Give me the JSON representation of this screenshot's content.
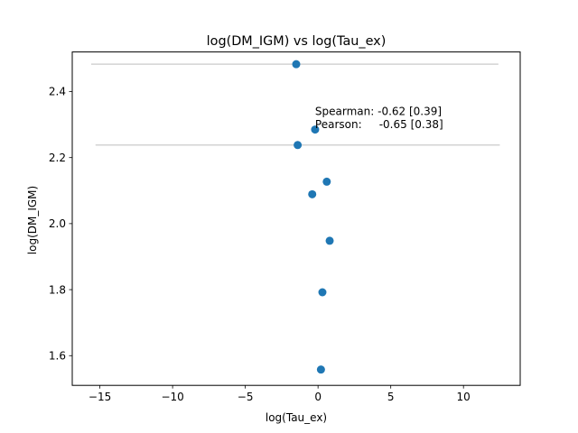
{
  "chart_data": {
    "type": "scatter",
    "title": "log(DM_IGM) vs log(Tau_ex)",
    "xlabel": "log(Tau_ex)",
    "ylabel": "log(DM_IGM)",
    "xlim": [
      -16.9,
      13.9
    ],
    "ylim": [
      1.51,
      2.52
    ],
    "xticks": [
      -15,
      -10,
      -5,
      0,
      5,
      10
    ],
    "xtick_labels": [
      "−15",
      "−10",
      "−5",
      "0",
      "5",
      "10"
    ],
    "yticks": [
      1.6,
      1.8,
      2.0,
      2.2,
      2.4
    ],
    "ytick_labels": [
      "1.6",
      "1.8",
      "2.0",
      "2.2",
      "2.4"
    ],
    "grid": false,
    "marker_color": "#1f77b4",
    "errorbar_color": "#d3d3d3",
    "points": [
      {
        "x": -1.5,
        "y": 2.483
      },
      {
        "x": -0.2,
        "y": 2.285
      },
      {
        "x": -1.4,
        "y": 2.238
      },
      {
        "x": 0.6,
        "y": 2.127
      },
      {
        "x": -0.4,
        "y": 2.089
      },
      {
        "x": 0.8,
        "y": 1.948
      },
      {
        "x": 0.3,
        "y": 1.792
      },
      {
        "x": 0.2,
        "y": 1.558
      }
    ],
    "xerr_bars": [
      {
        "y": 2.483,
        "x_low": -15.6,
        "x_high": 12.4
      },
      {
        "y": 2.238,
        "x_low": -15.3,
        "x_high": 12.5
      }
    ],
    "annotations": [
      {
        "text": "Spearman: -0.62 [0.39]",
        "x": -0.2,
        "y": 2.34
      },
      {
        "text": "Pearson:     -0.65 [0.38]",
        "x": -0.2,
        "y": 2.3
      }
    ]
  }
}
